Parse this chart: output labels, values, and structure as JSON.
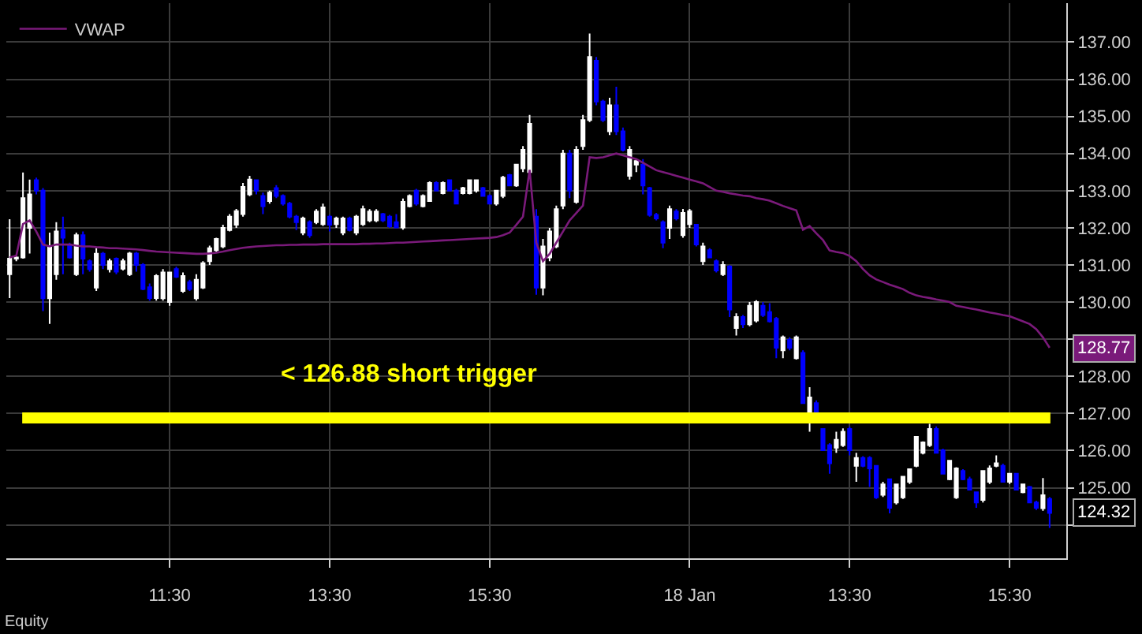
{
  "chart_data": {
    "type": "candlestick",
    "categories": [
      null,
      null,
      null,
      null,
      null,
      null,
      null,
      null,
      null,
      null,
      null,
      null,
      null,
      null,
      null,
      null,
      null,
      null,
      null,
      null,
      null,
      null,
      null,
      null,
      "11:30",
      null,
      null,
      null,
      null,
      null,
      null,
      null,
      null,
      null,
      null,
      null,
      null,
      null,
      null,
      null,
      null,
      null,
      null,
      null,
      null,
      null,
      null,
      null,
      "13:30",
      null,
      null,
      null,
      null,
      null,
      null,
      null,
      null,
      null,
      null,
      null,
      null,
      null,
      null,
      null,
      null,
      null,
      null,
      null,
      null,
      null,
      null,
      null,
      "15:30",
      null,
      null,
      null,
      null,
      null,
      null,
      null,
      null,
      null,
      null,
      null,
      null,
      null,
      null,
      null,
      null,
      null,
      null,
      null,
      null,
      null,
      null,
      null,
      null,
      null,
      null,
      null,
      null,
      null,
      "18 Jan",
      null,
      null,
      null,
      null,
      null,
      null,
      null,
      null,
      null,
      null,
      null,
      null,
      null,
      null,
      null,
      null,
      null,
      null,
      null,
      null,
      null,
      null,
      null,
      "13:30",
      null,
      null,
      null,
      null,
      null,
      null,
      null,
      null,
      null,
      null,
      null,
      null,
      null,
      null,
      null,
      null,
      null,
      null,
      null,
      null,
      null,
      null,
      null,
      "15:30",
      null,
      null,
      null,
      null,
      null,
      null
    ],
    "ohlc": [
      [
        130.75,
        132.23,
        130.11,
        131.17
      ],
      [
        131.17,
        131.24,
        131.1,
        131.2
      ],
      [
        131.2,
        133.49,
        131.17,
        132.8
      ],
      [
        132.0,
        133.3,
        131.31,
        132.9
      ],
      [
        133.28,
        133.35,
        132.9,
        133.0
      ],
      [
        133.0,
        133.07,
        129.76,
        130.1
      ],
      [
        130.1,
        131.87,
        129.41,
        131.5
      ],
      [
        130.75,
        132.15,
        130.6,
        131.9
      ],
      [
        131.94,
        132.3,
        130.75,
        131.73
      ],
      [
        131.52,
        131.6,
        131.17,
        131.2
      ],
      [
        130.75,
        131.87,
        130.7,
        131.8
      ],
      [
        131.8,
        131.9,
        130.75,
        131.17
      ],
      [
        131.1,
        131.15,
        130.82,
        130.89
      ],
      [
        130.39,
        131.45,
        130.3,
        131.3
      ],
      [
        131.3,
        131.35,
        130.89,
        131.0
      ],
      [
        130.89,
        131.17,
        130.8,
        131.1
      ],
      [
        131.17,
        131.2,
        130.75,
        130.82
      ],
      [
        130.9,
        131.17,
        130.85,
        131.1
      ],
      [
        130.75,
        131.35,
        130.7,
        131.31
      ],
      [
        131.31,
        131.35,
        130.82,
        131.0
      ],
      [
        131.0,
        131.05,
        130.32,
        130.35
      ],
      [
        130.4,
        130.5,
        130.04,
        130.11
      ],
      [
        130.11,
        130.75,
        130.04,
        130.7
      ],
      [
        130.1,
        130.89,
        130.04,
        130.8
      ],
      [
        130.0,
        130.82,
        129.9,
        130.8
      ],
      [
        130.89,
        130.95,
        130.65,
        130.68
      ],
      [
        130.3,
        130.8,
        130.25,
        130.7
      ],
      [
        130.54,
        130.6,
        130.3,
        130.35
      ],
      [
        130.1,
        130.75,
        130.04,
        130.6
      ],
      [
        130.39,
        131.1,
        130.35,
        131.05
      ],
      [
        131.1,
        131.52,
        131.0,
        131.45
      ],
      [
        131.4,
        131.73,
        131.35,
        131.7
      ],
      [
        131.5,
        132.08,
        131.45,
        132.0
      ],
      [
        131.94,
        132.37,
        131.9,
        132.3
      ],
      [
        132.08,
        132.51,
        132.0,
        132.45
      ],
      [
        132.37,
        133.21,
        132.3,
        133.1
      ],
      [
        132.9,
        133.4,
        132.85,
        133.3
      ],
      [
        133.28,
        133.3,
        132.9,
        133.0
      ],
      [
        132.86,
        132.95,
        132.37,
        132.58
      ],
      [
        132.72,
        133.0,
        132.65,
        132.95
      ],
      [
        133.07,
        133.15,
        132.8,
        132.86
      ],
      [
        132.86,
        132.9,
        132.6,
        132.65
      ],
      [
        132.65,
        132.7,
        132.25,
        132.3
      ],
      [
        132.3,
        132.35,
        131.94,
        132.15
      ],
      [
        131.87,
        132.3,
        131.8,
        132.25
      ],
      [
        132.15,
        132.2,
        131.73,
        131.8
      ],
      [
        132.15,
        132.5,
        132.1,
        132.44
      ],
      [
        132.1,
        132.65,
        132.05,
        132.55
      ],
      [
        132.3,
        132.35,
        131.9,
        132.08
      ],
      [
        132.1,
        132.3,
        132.0,
        132.25
      ],
      [
        131.87,
        132.3,
        131.8,
        132.25
      ],
      [
        132.25,
        132.3,
        131.9,
        131.94
      ],
      [
        131.87,
        132.35,
        131.8,
        132.3
      ],
      [
        132.1,
        132.6,
        132.05,
        132.5
      ],
      [
        132.2,
        132.5,
        132.15,
        132.44
      ],
      [
        132.2,
        132.5,
        132.15,
        132.44
      ],
      [
        132.37,
        132.4,
        132.15,
        132.2
      ],
      [
        132.3,
        132.35,
        132.0,
        132.04
      ],
      [
        132.15,
        132.37,
        132.0,
        132.01
      ],
      [
        132.01,
        132.79,
        131.95,
        132.7
      ],
      [
        132.58,
        132.9,
        132.55,
        132.86
      ],
      [
        133.0,
        133.05,
        132.6,
        132.65
      ],
      [
        132.58,
        132.9,
        132.55,
        132.86
      ],
      [
        132.72,
        133.25,
        132.7,
        133.21
      ],
      [
        133.21,
        133.25,
        133.0,
        133.0
      ],
      [
        132.93,
        133.25,
        132.9,
        133.21
      ],
      [
        133.28,
        133.3,
        133.0,
        133.0
      ],
      [
        133.0,
        133.05,
        132.65,
        132.65
      ],
      [
        132.93,
        133.1,
        132.9,
        133.07
      ],
      [
        132.93,
        133.3,
        132.9,
        133.28
      ],
      [
        133.0,
        133.3,
        132.95,
        133.28
      ],
      [
        133.07,
        133.1,
        132.86,
        132.86
      ],
      [
        132.86,
        132.9,
        132.65,
        132.65
      ],
      [
        132.65,
        133.0,
        132.6,
        133.0
      ],
      [
        132.86,
        133.4,
        132.8,
        133.35
      ],
      [
        133.42,
        133.45,
        133.14,
        133.14
      ],
      [
        133.14,
        133.7,
        133.1,
        133.7
      ],
      [
        133.6,
        134.2,
        133.5,
        134.1
      ],
      [
        133.5,
        135.04,
        133.42,
        134.8
      ],
      [
        132.3,
        132.5,
        130.2,
        130.39
      ],
      [
        130.39,
        131.7,
        130.18,
        131.5
      ],
      [
        131.2,
        132.0,
        131.1,
        131.9
      ],
      [
        131.5,
        132.6,
        131.45,
        132.5
      ],
      [
        132.6,
        134.1,
        132.5,
        134.0
      ],
      [
        134.0,
        134.1,
        132.8,
        133.0
      ],
      [
        132.7,
        134.2,
        132.65,
        134.1
      ],
      [
        134.2,
        135.04,
        134.1,
        134.9
      ],
      [
        134.9,
        137.23,
        134.85,
        136.6
      ],
      [
        136.5,
        136.6,
        135.3,
        135.4
      ],
      [
        135.4,
        135.45,
        134.85,
        134.9
      ],
      [
        134.6,
        135.5,
        134.5,
        135.3
      ],
      [
        135.3,
        135.8,
        134.5,
        134.6
      ],
      [
        134.6,
        134.7,
        134.06,
        134.1
      ],
      [
        133.4,
        134.2,
        133.3,
        134.1
      ],
      [
        133.7,
        133.85,
        133.5,
        133.8
      ],
      [
        133.7,
        133.85,
        132.9,
        133.14
      ],
      [
        133.07,
        133.1,
        132.3,
        132.35
      ],
      [
        132.35,
        132.4,
        132.2,
        132.25
      ],
      [
        132.15,
        132.2,
        131.45,
        131.6
      ],
      [
        132.0,
        132.6,
        131.7,
        132.5
      ],
      [
        132.44,
        132.5,
        132.2,
        132.25
      ],
      [
        131.8,
        132.51,
        131.73,
        132.4
      ],
      [
        132.1,
        132.51,
        132.0,
        132.45
      ],
      [
        132.08,
        132.1,
        131.5,
        131.55
      ],
      [
        131.1,
        131.6,
        131.0,
        131.5
      ],
      [
        131.4,
        131.45,
        131.2,
        131.2
      ],
      [
        131.1,
        131.15,
        130.8,
        130.85
      ],
      [
        130.75,
        131.1,
        130.7,
        131.0
      ],
      [
        130.96,
        131.0,
        129.6,
        129.8
      ],
      [
        129.3,
        129.7,
        129.1,
        129.6
      ],
      [
        129.6,
        129.65,
        129.3,
        129.4
      ],
      [
        129.4,
        130.0,
        129.35,
        129.9
      ],
      [
        129.5,
        130.05,
        129.45,
        130.0
      ],
      [
        129.9,
        130.0,
        129.6,
        129.65
      ],
      [
        129.73,
        129.97,
        129.45,
        129.48
      ],
      [
        129.55,
        129.6,
        128.49,
        128.77
      ],
      [
        128.7,
        129.1,
        128.49,
        129.05
      ],
      [
        128.98,
        129.05,
        128.7,
        128.77
      ],
      [
        128.49,
        129.1,
        128.45,
        129.05
      ],
      [
        128.63,
        128.7,
        127.28,
        127.28
      ],
      [
        126.93,
        127.71,
        126.51,
        127.43
      ],
      [
        127.28,
        127.35,
        126.9,
        126.93
      ],
      [
        126.58,
        126.6,
        126.01,
        126.01
      ],
      [
        126.15,
        126.2,
        125.38,
        125.66
      ],
      [
        126.08,
        126.51,
        125.94,
        126.29
      ],
      [
        126.15,
        126.6,
        126.1,
        126.51
      ],
      [
        126.58,
        126.65,
        125.87,
        126.01
      ],
      [
        125.59,
        125.94,
        125.16,
        125.8
      ],
      [
        125.8,
        125.85,
        125.55,
        125.59
      ],
      [
        125.8,
        125.85,
        125.02,
        125.52
      ],
      [
        125.59,
        125.6,
        124.7,
        124.74
      ],
      [
        124.81,
        125.16,
        124.75,
        125.09
      ],
      [
        125.23,
        125.25,
        124.31,
        124.46
      ],
      [
        124.6,
        125.1,
        124.55,
        125.09
      ],
      [
        124.74,
        125.3,
        124.7,
        125.3
      ],
      [
        125.16,
        125.5,
        125.1,
        125.5
      ],
      [
        125.59,
        126.37,
        125.55,
        126.37
      ],
      [
        125.94,
        126.25,
        125.9,
        126.22
      ],
      [
        126.15,
        126.72,
        126.1,
        126.58
      ],
      [
        126.58,
        126.65,
        125.94,
        125.94
      ],
      [
        126.01,
        126.05,
        125.38,
        125.38
      ],
      [
        125.23,
        125.75,
        125.2,
        125.73
      ],
      [
        124.74,
        125.55,
        124.7,
        125.52
      ],
      [
        125.45,
        125.5,
        125.2,
        125.23
      ],
      [
        125.23,
        125.3,
        124.95,
        124.95
      ],
      [
        124.88,
        124.9,
        124.46,
        124.6
      ],
      [
        124.67,
        125.45,
        124.6,
        125.45
      ],
      [
        125.16,
        125.6,
        125.1,
        125.52
      ],
      [
        125.59,
        125.87,
        125.55,
        125.66
      ],
      [
        125.59,
        125.65,
        125.16,
        125.16
      ],
      [
        125.16,
        125.4,
        125.1,
        125.38
      ],
      [
        125.38,
        125.4,
        124.95,
        124.95
      ],
      [
        124.88,
        125.1,
        124.85,
        125.09
      ],
      [
        125.02,
        125.05,
        124.6,
        124.6
      ],
      [
        124.6,
        124.65,
        124.4,
        124.46
      ],
      [
        124.45,
        125.26,
        124.38,
        124.8
      ],
      [
        124.7,
        124.75,
        123.92,
        124.32
      ]
    ],
    "colors": [
      "#ffffff",
      "#ffffff",
      "#ffffff",
      "#ffffff",
      "#0000ff",
      "#0000ff",
      "#ffffff",
      "#ffffff",
      "#0000ff",
      "#0000ff",
      "#ffffff",
      "#0000ff",
      "#0000ff",
      "#ffffff",
      "#0000ff",
      "#ffffff",
      "#0000ff",
      "#ffffff",
      "#ffffff",
      "#0000ff",
      "#0000ff",
      "#0000ff",
      "#ffffff",
      "#ffffff",
      "#ffffff",
      "#0000ff",
      "#ffffff",
      "#0000ff",
      "#ffffff",
      "#ffffff",
      "#ffffff",
      "#ffffff",
      "#ffffff",
      "#ffffff",
      "#ffffff",
      "#ffffff",
      "#ffffff",
      "#0000ff",
      "#0000ff",
      "#ffffff",
      "#0000ff",
      "#0000ff",
      "#0000ff",
      "#0000ff",
      "#ffffff",
      "#0000ff",
      "#ffffff",
      "#ffffff",
      "#0000ff",
      "#ffffff",
      "#ffffff",
      "#0000ff",
      "#ffffff",
      "#ffffff",
      "#ffffff",
      "#ffffff",
      "#0000ff",
      "#0000ff",
      "#0000ff",
      "#ffffff",
      "#ffffff",
      "#0000ff",
      "#ffffff",
      "#ffffff",
      "#0000ff",
      "#ffffff",
      "#0000ff",
      "#0000ff",
      "#ffffff",
      "#ffffff",
      "#ffffff",
      "#0000ff",
      "#0000ff",
      "#ffffff",
      "#ffffff",
      "#0000ff",
      "#ffffff",
      "#ffffff",
      "#ffffff",
      "#0000ff",
      "#ffffff",
      "#ffffff",
      "#ffffff",
      "#ffffff",
      "#0000ff",
      "#ffffff",
      "#ffffff",
      "#ffffff",
      "#0000ff",
      "#0000ff",
      "#ffffff",
      "#0000ff",
      "#0000ff",
      "#ffffff",
      "#ffffff",
      "#0000ff",
      "#0000ff",
      "#0000ff",
      "#0000ff",
      "#ffffff",
      "#0000ff",
      "#ffffff",
      "#ffffff",
      "#0000ff",
      "#ffffff",
      "#0000ff",
      "#0000ff",
      "#ffffff",
      "#0000ff",
      "#ffffff",
      "#0000ff",
      "#ffffff",
      "#ffffff",
      "#0000ff",
      "#0000ff",
      "#0000ff",
      "#ffffff",
      "#0000ff",
      "#ffffff",
      "#0000ff",
      "#ffffff",
      "#0000ff",
      "#0000ff",
      "#0000ff",
      "#ffffff",
      "#ffffff",
      "#0000ff",
      "#ffffff",
      "#0000ff",
      "#0000ff",
      "#0000ff",
      "#ffffff",
      "#0000ff",
      "#ffffff",
      "#ffffff",
      "#ffffff",
      "#ffffff",
      "#ffffff",
      "#ffffff",
      "#0000ff",
      "#0000ff",
      "#ffffff",
      "#ffffff",
      "#0000ff",
      "#0000ff",
      "#0000ff",
      "#ffffff",
      "#ffffff",
      "#ffffff",
      "#0000ff",
      "#ffffff",
      "#0000ff",
      "#ffffff",
      "#0000ff",
      "#0000ff",
      "#ffffff",
      "#0000ff"
    ],
    "series": [
      {
        "type": "line",
        "name": "VWAP",
        "color": "#7a1a7a",
        "values": [
          131.2,
          131.25,
          132.1,
          132.2,
          131.9,
          131.55,
          131.5,
          131.55,
          131.55,
          131.55,
          131.52,
          131.5,
          131.5,
          131.48,
          131.47,
          131.45,
          131.45,
          131.44,
          131.43,
          131.42,
          131.4,
          131.38,
          131.36,
          131.35,
          131.34,
          131.33,
          131.32,
          131.31,
          131.3,
          131.3,
          131.31,
          131.33,
          131.36,
          131.4,
          131.43,
          131.46,
          131.48,
          131.5,
          131.51,
          131.52,
          131.53,
          131.53,
          131.54,
          131.54,
          131.55,
          131.55,
          131.55,
          131.56,
          131.56,
          131.56,
          131.56,
          131.56,
          131.56,
          131.57,
          131.57,
          131.58,
          131.58,
          131.59,
          131.6,
          131.6,
          131.61,
          131.62,
          131.63,
          131.64,
          131.65,
          131.66,
          131.67,
          131.68,
          131.69,
          131.7,
          131.71,
          131.72,
          131.73,
          131.75,
          131.8,
          131.87,
          132.08,
          132.3,
          133.56,
          131.6,
          131.1,
          131.3,
          131.6,
          131.9,
          132.2,
          132.4,
          132.6,
          133.9,
          133.88,
          133.9,
          133.95,
          134.0,
          133.95,
          133.9,
          133.85,
          133.75,
          133.65,
          133.55,
          133.5,
          133.45,
          133.4,
          133.35,
          133.3,
          133.25,
          133.2,
          133.1,
          133.0,
          132.97,
          132.93,
          132.9,
          132.87,
          132.85,
          132.8,
          132.77,
          132.73,
          132.66,
          132.59,
          132.53,
          132.47,
          131.95,
          132.05,
          131.85,
          131.67,
          131.39,
          131.35,
          131.32,
          131.24,
          131.1,
          130.89,
          130.72,
          130.61,
          130.54,
          130.47,
          130.41,
          130.35,
          130.25,
          130.18,
          130.14,
          130.11,
          130.07,
          130.04,
          130.0,
          129.9,
          129.87,
          129.83,
          129.8,
          129.76,
          129.72,
          129.69,
          129.65,
          129.62,
          129.55,
          129.48,
          129.41,
          129.27,
          129.05,
          128.77
        ]
      }
    ],
    "ylim": [
      123.1,
      138.05
    ],
    "yticks": [
      {
        "value": 124,
        "label": null
      },
      {
        "value": 125,
        "label": "125.00"
      },
      {
        "value": 126,
        "label": "126.00"
      },
      {
        "value": 127,
        "label": "127.00"
      },
      {
        "value": 128,
        "label": "128.00"
      },
      {
        "value": 129,
        "label": null
      },
      {
        "value": 130,
        "label": "130.00"
      },
      {
        "value": 131,
        "label": "131.00"
      },
      {
        "value": 132,
        "label": "132.00"
      },
      {
        "value": 133,
        "label": "133.00"
      },
      {
        "value": 134,
        "label": "134.00"
      },
      {
        "value": 135,
        "label": "135.00"
      },
      {
        "value": 136,
        "label": "136.00"
      },
      {
        "value": 137,
        "label": "137.00"
      }
    ],
    "grid": true,
    "legend": "top left",
    "ref_lines": [
      {
        "axis": "y",
        "value": 126.88,
        "label": "< 126.88 short trigger",
        "color": "#ffff00"
      }
    ],
    "annotations": [
      "128.77",
      "124.32",
      "Equity"
    ]
  }
}
